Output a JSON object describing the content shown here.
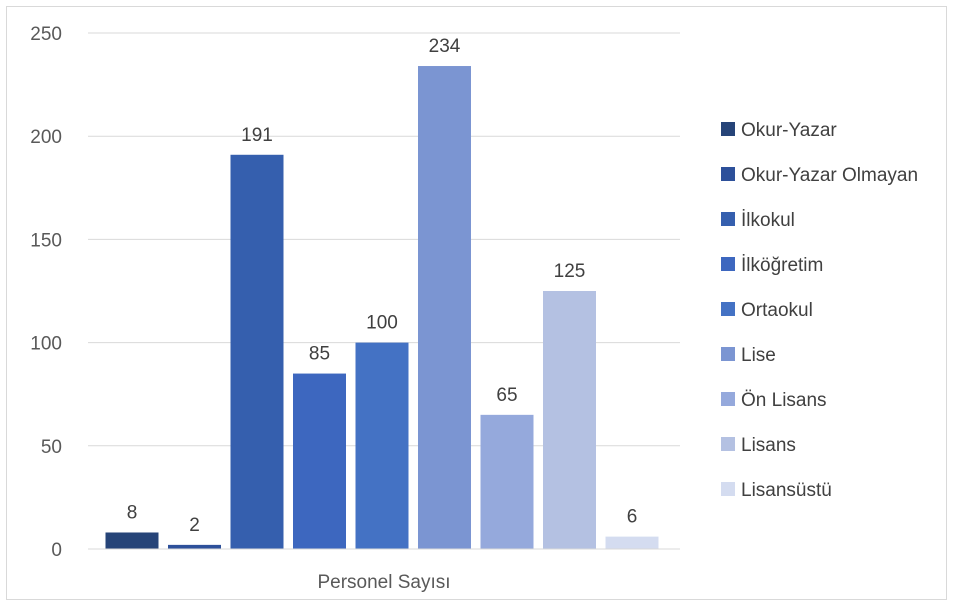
{
  "chart_data": {
    "type": "bar",
    "categories": [
      "Personel Sayısı"
    ],
    "category_label": "Personel Sayısı",
    "series": [
      {
        "name": "Okur-Yazar",
        "values": [
          8
        ],
        "color": "#264478"
      },
      {
        "name": "Okur-Yazar Olmayan",
        "values": [
          2
        ],
        "color": "#2d509a"
      },
      {
        "name": "İlkokul",
        "values": [
          191
        ],
        "color": "#355fae"
      },
      {
        "name": "İlköğretim",
        "values": [
          85
        ],
        "color": "#3d67bf"
      },
      {
        "name": "Ortaokul",
        "values": [
          100
        ],
        "color": "#4472c4"
      },
      {
        "name": "Lise",
        "values": [
          234
        ],
        "color": "#7b95d2"
      },
      {
        "name": "Ön Lisans",
        "values": [
          65
        ],
        "color": "#95a9dc"
      },
      {
        "name": "Lisans",
        "values": [
          125
        ],
        "color": "#b4c1e2"
      },
      {
        "name": "Lisansüstü",
        "values": [
          6
        ],
        "color": "#d4dcf0"
      }
    ],
    "y_ticks": [
      "0",
      "50",
      "100",
      "150",
      "200",
      "250"
    ],
    "ylim": [
      0,
      250
    ],
    "grid": true,
    "legend_position": "right",
    "title": "",
    "xlabel": "",
    "ylabel": ""
  }
}
